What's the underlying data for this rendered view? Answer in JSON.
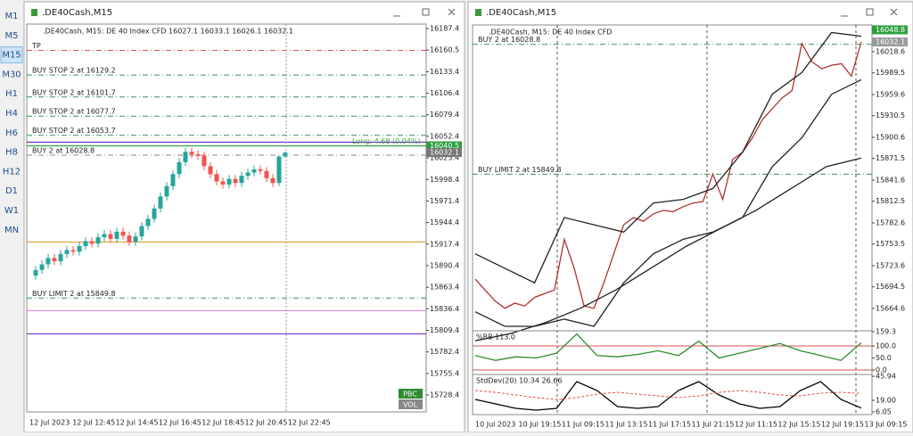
{
  "timeframes": [
    "M1",
    "M5",
    "M15",
    "M30",
    "H1",
    "H4",
    "H6",
    "H8",
    "H12",
    "D1",
    "W1",
    "MN"
  ],
  "selected_timeframe": "M15",
  "windows": [
    {
      "title": ".DE40Cash,M15",
      "info": ".DE40Cash, M15:  DE 40 Index CFD  16027.1 16033.1 16026.1 16032.1",
      "ylim": [
        15707.2,
        16193.0
      ],
      "yticks": [
        16187.4,
        16160.5,
        16133.4,
        16106.4,
        16079.4,
        16052.4,
        16025.4,
        15998.4,
        15971.4,
        15944.4,
        15917.4,
        15890.4,
        15863.4,
        15836.4,
        15809.4,
        15782.4,
        15755.4,
        15728.4
      ],
      "price_tags": [
        {
          "value": 16040.5,
          "color": "#2e9e3e"
        },
        {
          "value": 16032.1,
          "color": "#777777"
        }
      ],
      "orders": [
        {
          "label": "TP",
          "price": 16160.0,
          "color": "#d9534f"
        },
        {
          "label": "BUY STOP 2 at 16129.2",
          "price": 16129.2,
          "color": "#3c8f5a"
        },
        {
          "label": "BUY STOP 2 at 16101.7",
          "price": 16101.7,
          "color": "#3c8f5a"
        },
        {
          "label": "BUY STOP 2 at 16077.7",
          "price": 16077.7,
          "color": "#3c8f5a"
        },
        {
          "label": "BUY STOP 2 at 16053.7",
          "price": 16053.7,
          "color": "#3c8f5a"
        },
        {
          "label": "BUY 2 at 16028.8",
          "price": 16028.8,
          "color": "#888888"
        },
        {
          "label": "BUY LIMIT 2 at 15849.8",
          "price": 15849.8,
          "color": "#3c8f5a"
        }
      ],
      "levels": [
        {
          "price": 16045.0,
          "color": "#7a2fd0"
        },
        {
          "price": 16040.5,
          "color": "#2e9e3e"
        },
        {
          "price": 15805.0,
          "color": "#7a2fd0"
        },
        {
          "price": 15834.0,
          "color": "#d88ad8"
        },
        {
          "price": 15920.0,
          "color": "#e0a030"
        }
      ],
      "position": "Long: 4.68  (0.04%)",
      "up_color": "#26a69a",
      "down_color": "#ef5350",
      "candles": {
        "open": [
          15878,
          15885,
          15892,
          15900,
          15896,
          15905,
          15910,
          15908,
          15915,
          15921,
          15918,
          15926,
          15930,
          15924,
          15933,
          15928,
          15920,
          15927,
          15940,
          15949,
          15962,
          15977,
          15990,
          16005,
          16020,
          16033,
          16030,
          16028,
          16015,
          16005,
          15996,
          15992,
          15999,
          15994,
          16003,
          16007,
          16011,
          16009,
          16000,
          15994,
          16027.1
        ],
        "high": [
          15890,
          15897,
          15905,
          15905,
          15910,
          15915,
          15915,
          15920,
          15926,
          15926,
          15931,
          15935,
          15935,
          15938,
          15938,
          15933,
          15932,
          15945,
          15954,
          15967,
          15982,
          15995,
          16010,
          16025,
          16038,
          16038,
          16035,
          16033,
          16020,
          16010,
          16001,
          16004,
          16004,
          16008,
          16012,
          16016,
          16016,
          16014,
          16005,
          16028,
          16033.1
        ],
        "low": [
          15873,
          15880,
          15887,
          15891,
          15891,
          15900,
          15903,
          15903,
          15910,
          15913,
          15913,
          15921,
          15919,
          15919,
          15923,
          15915,
          15915,
          15922,
          15935,
          15944,
          15957,
          15972,
          15985,
          16000,
          16015,
          16025,
          16023,
          16010,
          16000,
          15991,
          15987,
          15987,
          15989,
          15989,
          15998,
          16002,
          16004,
          15995,
          15989,
          15990,
          16026.1
        ],
        "close": [
          15885,
          15892,
          15900,
          15896,
          15905,
          15910,
          15908,
          15915,
          15921,
          15918,
          15926,
          15930,
          15924,
          15933,
          15928,
          15920,
          15927,
          15940,
          15949,
          15962,
          15977,
          15990,
          16005,
          16020,
          16033,
          16030,
          16028,
          16015,
          16005,
          15996,
          15992,
          15999,
          15994,
          16003,
          16007,
          16011,
          16009,
          16000,
          15994,
          16027.1,
          16032.1
        ]
      },
      "time_labels": [
        "12 Jul 2023",
        "12 Jul 12:45",
        "12 Jul 14:45",
        "12 Jul 16:45",
        "12 Jul 18:45",
        "12 Jul 20:45",
        "12 Jul 22:45"
      ],
      "buttons": [
        {
          "label": "PBC",
          "color": "#2e8b2e"
        },
        {
          "label": "VOL",
          "color": "#888888"
        }
      ]
    },
    {
      "title": ".DE40Cash,M15",
      "info": ".DE40Cash, M15:  DE 40 Index CFD",
      "ylim": [
        15635.1,
        16055.5
      ],
      "yticks": [
        16018.6,
        15989.5,
        15959.6,
        15930.5,
        15900.6,
        15871.5,
        15841.6,
        15812.5,
        15782.6,
        15753.5,
        15723.6,
        15694.5,
        15664.6
      ],
      "price_tags": [
        {
          "value": 16048.8,
          "color": "#2e9e3e"
        },
        {
          "value": 16032.1,
          "color": "#999999"
        }
      ],
      "orders": [
        {
          "label": "BUY 2 at 16028.8",
          "price": 16028.8,
          "color": "#3c8f5a"
        },
        {
          "label": "BUY LIMIT 2 at 15849.8",
          "price": 15849.8,
          "color": "#3c8f5a"
        }
      ],
      "series": [
        {
          "color": "#b03030",
          "values": [
            15705,
            15690,
            15675,
            15665,
            15672,
            15668,
            15680,
            15685,
            15690,
            15760,
            15720,
            15668,
            15665,
            15700,
            15740,
            15780,
            15790,
            15785,
            15795,
            15800,
            15798,
            15805,
            15810,
            15812,
            15850,
            15815,
            15870,
            15880,
            15900,
            15925,
            15940,
            15955,
            15965,
            16030,
            16005,
            15995,
            16000,
            16002,
            15985,
            16032.1
          ]
        },
        {
          "color": "#222222",
          "values": [
            15740,
            15720,
            15700,
            15790,
            15780,
            15770,
            15810,
            15815,
            15830,
            15880,
            15960,
            15990,
            16045,
            16040
          ]
        },
        {
          "color": "#222222",
          "values": [
            15660,
            15640,
            15640,
            15650,
            15640,
            15700,
            15740,
            15760,
            15770,
            15790,
            15860,
            15900,
            15960,
            15980
          ]
        },
        {
          "color": "#222222",
          "values": [
            15620,
            15630,
            15645,
            15665,
            15690,
            15720,
            15750,
            15775,
            15800,
            15830,
            15860,
            15872
          ]
        }
      ],
      "time_labels": [
        "10 Jul 2023",
        "10 Jul 19:15",
        "11 Jul 09:15",
        "11 Jul 13:15",
        "11 Jul 17:15",
        "11 Jul 21:15",
        "12 Jul 11:15",
        "12 Jul 15:15",
        "12 Jul 19:15",
        "13 Jul 09:15"
      ],
      "indicators": [
        {
          "label": "%BB 113.0",
          "ylim": [
            -11,
            163
          ],
          "yticks": [
            159.3,
            {
              "value": 100,
              "label": "100.0"
            },
            {
              "value": 50,
              "label": "50.0"
            },
            {
              "value": 0,
              "label": "0.0"
            }
          ],
          "levels": [
            100,
            0
          ],
          "series": [
            {
              "color": "#2e8b2e",
              "values": [
                60,
                40,
                55,
                50,
                70,
                150,
                60,
                55,
                65,
                80,
                60,
                120,
                50,
                70,
                90,
                110,
                80,
                60,
                40,
                113
              ]
            }
          ]
        },
        {
          "label": "StdDev(20) 10.34 26.66",
          "ylim": [
            3,
            48
          ],
          "yticks": [
            45.94,
            {
              "value": 19,
              "label": "19.00"
            },
            6.05
          ],
          "levels": [],
          "series": [
            {
              "color": "#000000",
              "values": [
                20,
                15,
                10,
                8,
                10,
                40,
                30,
                12,
                10,
                12,
                30,
                40,
                25,
                15,
                10,
                12,
                30,
                40,
                20,
                10.34
              ]
            },
            {
              "color": "#d9534f",
              "dash": true,
              "values": [
                30,
                28,
                25,
                22,
                20,
                22,
                26,
                28,
                26,
                24,
                22,
                24,
                28,
                30,
                28,
                25,
                24,
                27,
                28,
                26.66
              ]
            }
          ]
        }
      ]
    }
  ]
}
